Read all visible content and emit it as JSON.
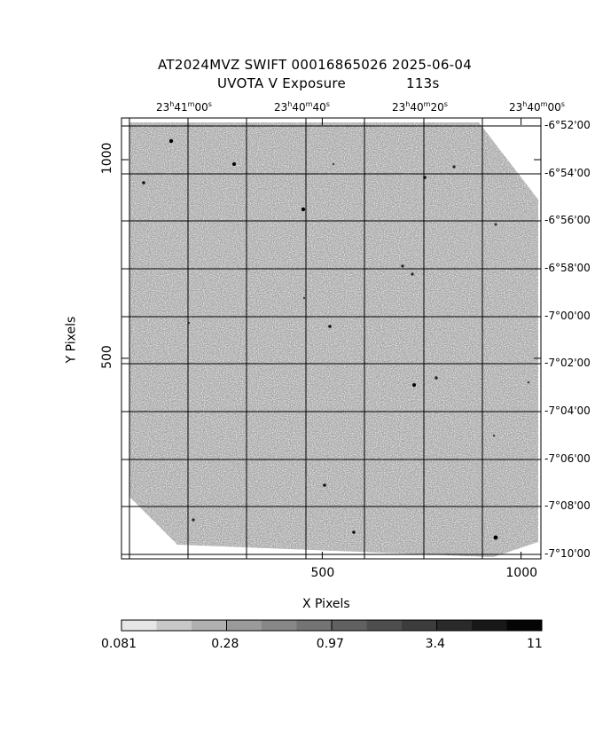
{
  "title": {
    "line1": "AT2024MVZ SWIFT 00016865026 2025-06-04",
    "line2_left": "UVOTA V Exposure",
    "line2_right": "113s"
  },
  "axes": {
    "x_label": "X Pixels",
    "y_label": "Y Pixels",
    "x_ticks": [
      {
        "value": 500,
        "label": "500"
      },
      {
        "value": 1000,
        "label": "1000"
      }
    ],
    "y_ticks": [
      {
        "value": 500,
        "label": "500"
      },
      {
        "value": 1000,
        "label": "1000"
      }
    ],
    "x_range": [
      -5,
      1050
    ],
    "y_range": [
      -5,
      1105
    ]
  },
  "ra_ticks": [
    {
      "h": "23",
      "m": "41",
      "s": "00"
    },
    {
      "h": "23",
      "m": "40",
      "s": "40"
    },
    {
      "h": "23",
      "m": "40",
      "s": "20"
    },
    {
      "h": "23",
      "m": "40",
      "s": "00"
    }
  ],
  "dec_ticks": [
    "-6°52'00",
    "-6°54'00",
    "-6°56'00",
    "-6°58'00",
    "-7°00'00",
    "-7°02'00",
    "-7°04'00",
    "-7°06'00",
    "-7°08'00",
    "-7°10'00"
  ],
  "colorbar": {
    "labels": [
      "0.081",
      "0.28",
      "0.97",
      "3.4",
      "11"
    ],
    "colors": [
      "#e6e6e6",
      "#c8c8c8",
      "#b0b0b0",
      "#9a9a9a",
      "#878787",
      "#747474",
      "#616161",
      "#4e4e4e",
      "#3c3c3c",
      "#2a2a2a",
      "#181818",
      "#050505"
    ]
  },
  "image": {
    "background_color": "#a6a6a6",
    "noise_dark": "#8a8a8a",
    "noise_light": "#e2e2e2",
    "grid_color": "#000000"
  }
}
